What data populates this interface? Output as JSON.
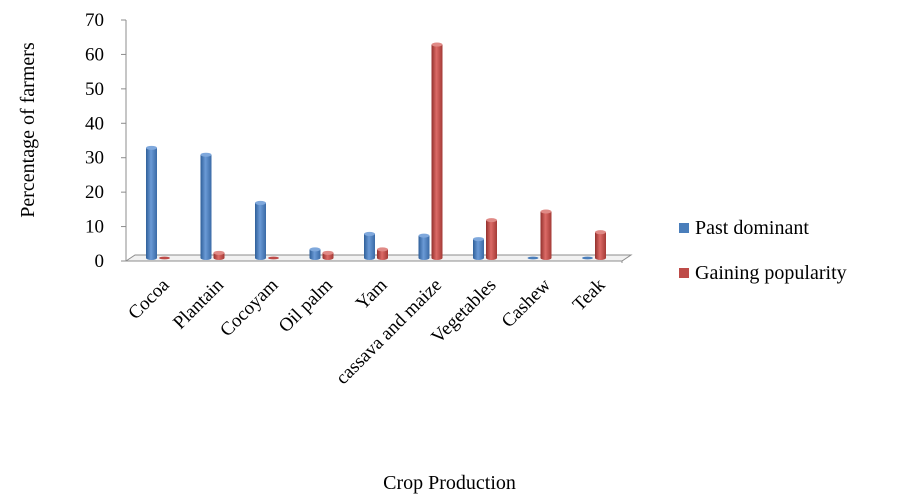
{
  "chart_data": {
    "type": "bar",
    "title": "",
    "xlabel": "Crop Production",
    "ylabel": "Percentage of farmers",
    "ylim": [
      0,
      70
    ],
    "yticks": [
      "0",
      "10",
      "20",
      "30",
      "40",
      "50",
      "60",
      "70"
    ],
    "categories": [
      "Cocoa",
      "Plantain",
      "Cocoyam",
      "Oil palm",
      "Yam",
      "cassava and maize",
      "Vegetables",
      "Cashew",
      "Teak"
    ],
    "series": [
      {
        "name": "Past dominant",
        "color": "#4a7ebb",
        "values": [
          32,
          30,
          16,
          2.5,
          7,
          6.5,
          5.5,
          0,
          0
        ]
      },
      {
        "name": "Gaining popularity",
        "color": "#be4b48",
        "values": [
          0,
          1.5,
          0,
          1.5,
          2.5,
          62,
          11,
          13.5,
          7.5
        ]
      }
    ],
    "legend_position": "right",
    "grid": false
  }
}
